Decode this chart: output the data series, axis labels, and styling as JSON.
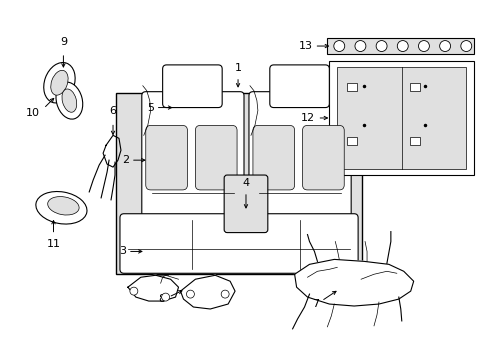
{
  "bg_color": "#ffffff",
  "line_color": "#000000",
  "gray_fill": "#c8c8c8",
  "light_gray": "#e0e0e0",
  "figsize": [
    4.89,
    3.6
  ],
  "dpi": 100
}
